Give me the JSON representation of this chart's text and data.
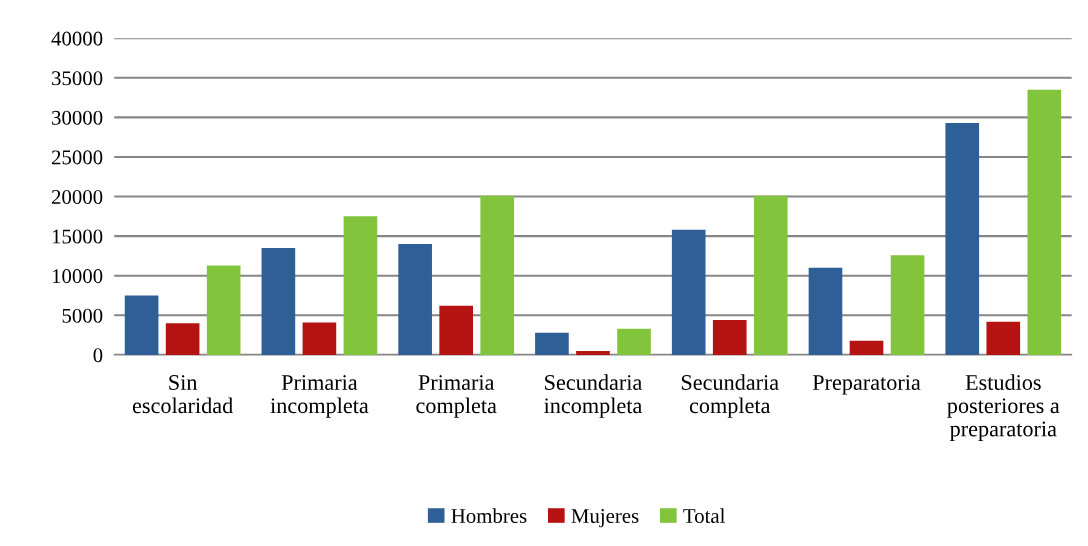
{
  "chart_data": {
    "type": "bar",
    "categories": [
      "Sin\nescolaridad",
      "Primaria\nincompleta",
      "Primaria\ncompleta",
      "Secundaria\nincompleta",
      "Secundaria\ncompleta",
      "Preparatoria",
      "Estudios\nposteriores a\npreparatoria"
    ],
    "series": [
      {
        "name": "Hombres",
        "color": "#2f5f97",
        "values": [
          7500,
          13500,
          14000,
          2800,
          15800,
          11000,
          29300
        ]
      },
      {
        "name": "Mujeres",
        "color": "#b51212",
        "values": [
          4000,
          4100,
          6200,
          500,
          4400,
          1800,
          4200
        ]
      },
      {
        "name": "Total",
        "color": "#82c43c",
        "values": [
          11300,
          17500,
          20100,
          3300,
          20100,
          12600,
          33500
        ]
      }
    ],
    "ylim": [
      0,
      40000
    ],
    "yticks": [
      0,
      5000,
      10000,
      15000,
      20000,
      25000,
      30000,
      35000,
      40000
    ],
    "grid": "y",
    "legend": "bottom"
  }
}
